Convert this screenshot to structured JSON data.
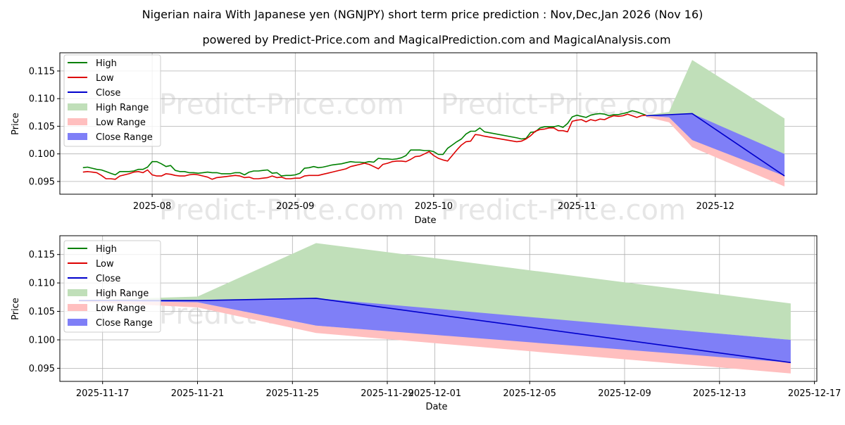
{
  "chart_data": [
    {
      "type": "line",
      "title": "Nigerian naira With Japanese yen (NGNJPY) short term price prediction : Nov,Dec,Jan 2026 (Nov 16)",
      "subtitle": "powered by Predict-Price.com and MagicalPrediction.com and MagicalAnalysis.com",
      "watermark": "Predict-Price.com",
      "xlabel": "Date",
      "ylabel": "Price",
      "xlim": [
        "2025-07-12",
        "2025-12-23"
      ],
      "ylim": [
        0.0927,
        0.1183
      ],
      "yticks": [
        0.095,
        0.1,
        0.105,
        0.11,
        0.115
      ],
      "ytick_labels": [
        "0.095",
        "0.100",
        "0.105",
        "0.110",
        "0.115"
      ],
      "xticks": [
        "2025-08-01",
        "2025-09-01",
        "2025-10-01",
        "2025-11-01",
        "2025-12-01"
      ],
      "xtick_labels": [
        "2025-08",
        "2025-09",
        "2025-10",
        "2025-11",
        "2025-12"
      ],
      "legend": {
        "position": "top-left",
        "entries": [
          {
            "label": "High",
            "kind": "line",
            "color": "#008000"
          },
          {
            "label": "Low",
            "kind": "line",
            "color": "#dd0000"
          },
          {
            "label": "Close",
            "kind": "line",
            "color": "#0000cc"
          },
          {
            "label": "High Range",
            "kind": "patch",
            "color": "#c0dfb9"
          },
          {
            "label": "Low Range",
            "kind": "patch",
            "color": "#ffbfbf"
          },
          {
            "label": "Close Range",
            "kind": "patch",
            "color": "#7f7ff7"
          }
        ]
      },
      "series": [
        {
          "name": "High",
          "color": "#008000",
          "x": [
            "2025-07-17",
            "2025-07-18",
            "2025-07-19",
            "2025-07-20",
            "2025-07-21",
            "2025-07-22",
            "2025-07-23",
            "2025-07-24",
            "2025-07-25",
            "2025-07-26",
            "2025-07-27",
            "2025-07-28",
            "2025-07-29",
            "2025-07-30",
            "2025-07-31",
            "2025-08-01",
            "2025-08-02",
            "2025-08-03",
            "2025-08-04",
            "2025-08-05",
            "2025-08-06",
            "2025-08-07",
            "2025-08-08",
            "2025-08-09",
            "2025-08-10",
            "2025-08-11",
            "2025-08-12",
            "2025-08-13",
            "2025-08-14",
            "2025-08-15",
            "2025-08-16",
            "2025-08-17",
            "2025-08-18",
            "2025-08-19",
            "2025-08-20",
            "2025-08-21",
            "2025-08-22",
            "2025-08-23",
            "2025-08-24",
            "2025-08-25",
            "2025-08-26",
            "2025-08-27",
            "2025-08-28",
            "2025-08-29",
            "2025-08-30",
            "2025-08-31",
            "2025-09-01",
            "2025-09-02",
            "2025-09-03",
            "2025-09-04",
            "2025-09-05",
            "2025-09-06",
            "2025-09-07",
            "2025-09-08",
            "2025-09-09",
            "2025-09-10",
            "2025-09-11",
            "2025-09-12",
            "2025-09-13",
            "2025-09-14",
            "2025-09-15",
            "2025-09-16",
            "2025-09-17",
            "2025-09-18",
            "2025-09-19",
            "2025-09-20",
            "2025-09-21",
            "2025-09-22",
            "2025-09-23",
            "2025-09-24",
            "2025-09-25",
            "2025-09-26",
            "2025-09-27",
            "2025-09-28",
            "2025-09-29",
            "2025-09-30",
            "2025-10-01",
            "2025-10-02",
            "2025-10-03",
            "2025-10-04",
            "2025-10-05",
            "2025-10-06",
            "2025-10-07",
            "2025-10-08",
            "2025-10-09",
            "2025-10-10",
            "2025-10-11",
            "2025-10-12",
            "2025-10-19",
            "2025-10-20",
            "2025-10-21",
            "2025-10-22",
            "2025-10-23",
            "2025-10-24",
            "2025-10-25",
            "2025-10-26",
            "2025-10-27",
            "2025-10-28",
            "2025-10-29",
            "2025-10-30",
            "2025-10-31",
            "2025-11-01",
            "2025-11-02",
            "2025-11-03",
            "2025-11-04",
            "2025-11-05",
            "2025-11-06",
            "2025-11-07",
            "2025-11-08",
            "2025-11-09",
            "2025-11-10",
            "2025-11-11",
            "2025-11-12",
            "2025-11-13",
            "2025-11-14",
            "2025-11-15",
            "2025-11-16"
          ],
          "values": [
            0.0975,
            0.0976,
            0.0974,
            0.0972,
            0.0971,
            0.0968,
            0.0965,
            0.0962,
            0.0968,
            0.0968,
            0.0968,
            0.0969,
            0.0972,
            0.0972,
            0.0976,
            0.0986,
            0.0986,
            0.0982,
            0.0977,
            0.0979,
            0.097,
            0.0968,
            0.0968,
            0.0966,
            0.0966,
            0.0965,
            0.0966,
            0.0967,
            0.0966,
            0.0966,
            0.0964,
            0.0964,
            0.0964,
            0.0966,
            0.0966,
            0.0962,
            0.0967,
            0.0969,
            0.0969,
            0.097,
            0.0971,
            0.0965,
            0.0966,
            0.096,
            0.0961,
            0.0961,
            0.0962,
            0.0965,
            0.0974,
            0.0975,
            0.0977,
            0.0975,
            0.0976,
            0.0978,
            0.098,
            0.0981,
            0.0982,
            0.0984,
            0.0986,
            0.0985,
            0.0985,
            0.0984,
            0.0986,
            0.0985,
            0.0992,
            0.0991,
            0.0991,
            0.099,
            0.0991,
            0.0993,
            0.0997,
            0.1007,
            0.1007,
            0.1007,
            0.1006,
            0.1006,
            0.1004,
            0.0999,
            0.0999,
            0.101,
            0.1016,
            0.1022,
            0.1027,
            0.1036,
            0.1041,
            0.1041,
            0.1047,
            0.104,
            0.1029,
            0.1027,
            0.1028,
            0.1039,
            0.104,
            0.1047,
            0.1049,
            0.1049,
            0.1049,
            0.1051,
            0.1048,
            0.1055,
            0.1067,
            0.107,
            0.1068,
            0.1066,
            0.107,
            0.1072,
            0.1073,
            0.1072,
            0.1069,
            0.1071,
            0.1071,
            0.1073,
            0.1075,
            0.1078,
            0.1076,
            0.1073,
            0.107
          ]
        },
        {
          "name": "Low",
          "color": "#dd0000",
          "x": [
            "2025-07-17",
            "2025-07-18",
            "2025-07-19",
            "2025-07-20",
            "2025-07-21",
            "2025-07-22",
            "2025-07-23",
            "2025-07-24",
            "2025-07-25",
            "2025-07-26",
            "2025-07-27",
            "2025-07-28",
            "2025-07-29",
            "2025-07-30",
            "2025-07-31",
            "2025-08-01",
            "2025-08-02",
            "2025-08-03",
            "2025-08-04",
            "2025-08-05",
            "2025-08-06",
            "2025-08-07",
            "2025-08-08",
            "2025-08-09",
            "2025-08-10",
            "2025-08-11",
            "2025-08-12",
            "2025-08-13",
            "2025-08-14",
            "2025-08-15",
            "2025-08-16",
            "2025-08-17",
            "2025-08-18",
            "2025-08-19",
            "2025-08-20",
            "2025-08-21",
            "2025-08-22",
            "2025-08-23",
            "2025-08-24",
            "2025-08-25",
            "2025-08-26",
            "2025-08-27",
            "2025-08-28",
            "2025-08-29",
            "2025-08-30",
            "2025-08-31",
            "2025-09-01",
            "2025-09-02",
            "2025-09-03",
            "2025-09-04",
            "2025-09-05",
            "2025-09-06",
            "2025-09-07",
            "2025-09-08",
            "2025-09-09",
            "2025-09-10",
            "2025-09-11",
            "2025-09-12",
            "2025-09-13",
            "2025-09-14",
            "2025-09-15",
            "2025-09-16",
            "2025-09-17",
            "2025-09-18",
            "2025-09-19",
            "2025-09-20",
            "2025-09-21",
            "2025-09-22",
            "2025-09-23",
            "2025-09-24",
            "2025-09-25",
            "2025-09-26",
            "2025-09-27",
            "2025-09-28",
            "2025-09-29",
            "2025-09-30",
            "2025-10-01",
            "2025-10-02",
            "2025-10-03",
            "2025-10-04",
            "2025-10-05",
            "2025-10-06",
            "2025-10-07",
            "2025-10-08",
            "2025-10-09",
            "2025-10-10",
            "2025-10-11",
            "2025-10-12",
            "2025-10-19",
            "2025-10-20",
            "2025-10-21",
            "2025-10-22",
            "2025-10-23",
            "2025-10-24",
            "2025-10-25",
            "2025-10-26",
            "2025-10-27",
            "2025-10-28",
            "2025-10-29",
            "2025-10-30",
            "2025-10-31",
            "2025-11-01",
            "2025-11-02",
            "2025-11-03",
            "2025-11-04",
            "2025-11-05",
            "2025-11-06",
            "2025-11-07",
            "2025-11-08",
            "2025-11-09",
            "2025-11-10",
            "2025-11-11",
            "2025-11-12",
            "2025-11-13",
            "2025-11-14",
            "2025-11-15",
            "2025-11-16"
          ],
          "values": [
            0.0967,
            0.0968,
            0.0967,
            0.0966,
            0.0961,
            0.0955,
            0.0955,
            0.0954,
            0.096,
            0.0962,
            0.0964,
            0.0967,
            0.0968,
            0.0966,
            0.0971,
            0.0962,
            0.096,
            0.096,
            0.0964,
            0.0963,
            0.0961,
            0.096,
            0.096,
            0.0962,
            0.0963,
            0.0962,
            0.096,
            0.0958,
            0.0954,
            0.0957,
            0.0958,
            0.0959,
            0.096,
            0.0961,
            0.096,
            0.0957,
            0.0958,
            0.0955,
            0.0955,
            0.0956,
            0.0957,
            0.096,
            0.0957,
            0.0958,
            0.0955,
            0.0955,
            0.0956,
            0.0956,
            0.096,
            0.0961,
            0.0961,
            0.0961,
            0.0963,
            0.0965,
            0.0967,
            0.0969,
            0.0971,
            0.0973,
            0.0977,
            0.0979,
            0.0981,
            0.0983,
            0.0981,
            0.0977,
            0.0973,
            0.0981,
            0.0983,
            0.0986,
            0.0987,
            0.0987,
            0.0986,
            0.099,
            0.0995,
            0.0996,
            0.1,
            0.1004,
            0.0997,
            0.0992,
            0.0989,
            0.0987,
            0.0997,
            0.1007,
            0.1016,
            0.1022,
            0.1023,
            0.1035,
            0.1034,
            0.1032,
            0.1022,
            0.1023,
            0.1027,
            0.1033,
            0.1041,
            0.1044,
            0.1045,
            0.1047,
            0.1047,
            0.1042,
            0.1042,
            0.104,
            0.1059,
            0.1061,
            0.1062,
            0.1058,
            0.1062,
            0.106,
            0.1063,
            0.1062,
            0.1066,
            0.1069,
            0.1068,
            0.1069,
            0.1072,
            0.1069,
            0.1066,
            0.1069,
            0.107
          ]
        },
        {
          "name": "Close",
          "color": "#0000cc",
          "x": [
            "2025-11-16",
            "2025-11-26",
            "2025-12-16"
          ],
          "values": [
            0.1069,
            0.1073,
            0.096
          ]
        }
      ],
      "bands": [
        {
          "name": "High Range",
          "color": "#c0dfb9",
          "x": [
            "2025-11-16",
            "2025-11-21",
            "2025-11-26",
            "2025-12-16"
          ],
          "upper": [
            0.107,
            0.1076,
            0.117,
            0.1064
          ],
          "lower": [
            0.1069,
            0.1069,
            0.1072,
            0.1
          ]
        },
        {
          "name": "Low Range",
          "color": "#ffbfbf",
          "x": [
            "2025-11-16",
            "2025-11-21",
            "2025-11-26",
            "2025-12-16"
          ],
          "upper": [
            0.1069,
            0.1066,
            0.1025,
            0.0962
          ],
          "lower": [
            0.1067,
            0.1057,
            0.1012,
            0.0941
          ]
        },
        {
          "name": "Close Range",
          "color": "#7f7ff7",
          "x": [
            "2025-11-16",
            "2025-11-21",
            "2025-11-26",
            "2025-12-16"
          ],
          "upper": [
            0.107,
            0.107,
            0.1073,
            0.1
          ],
          "lower": [
            0.1069,
            0.1066,
            0.1025,
            0.096
          ]
        }
      ]
    },
    {
      "type": "line",
      "xlabel": "Date",
      "ylabel": "Price",
      "watermark": "Predict-Price.com",
      "xlim": [
        "2025-11-15.2",
        "2025-12-17.1"
      ],
      "ylim": [
        0.0927,
        0.1183
      ],
      "yticks": [
        0.095,
        0.1,
        0.105,
        0.11,
        0.115
      ],
      "ytick_labels": [
        "0.095",
        "0.100",
        "0.105",
        "0.110",
        "0.115"
      ],
      "xticks": [
        "2025-11-17",
        "2025-11-21",
        "2025-11-25",
        "2025-11-29",
        "2025-12-01",
        "2025-12-05",
        "2025-12-09",
        "2025-12-13",
        "2025-12-17"
      ],
      "xtick_labels": [
        "2025-11-17",
        "2025-11-21",
        "2025-11-25",
        "2025-11-29",
        "2025-12-01",
        "2025-12-05",
        "2025-12-09",
        "2025-12-13",
        "2025-12-17"
      ],
      "legend": {
        "position": "top-left",
        "entries": [
          {
            "label": "High",
            "kind": "line",
            "color": "#008000"
          },
          {
            "label": "Low",
            "kind": "line",
            "color": "#dd0000"
          },
          {
            "label": "Close",
            "kind": "line",
            "color": "#0000cc"
          },
          {
            "label": "High Range",
            "kind": "patch",
            "color": "#c0dfb9"
          },
          {
            "label": "Low Range",
            "kind": "patch",
            "color": "#ffbfbf"
          },
          {
            "label": "Close Range",
            "kind": "patch",
            "color": "#7f7ff7"
          }
        ]
      },
      "series": [
        {
          "name": "Close",
          "color": "#0000cc",
          "x": [
            "2025-11-16",
            "2025-11-21",
            "2025-11-26",
            "2025-12-16"
          ],
          "values": [
            0.1069,
            0.1069,
            0.1073,
            0.096
          ]
        }
      ],
      "bands": [
        {
          "name": "High Range",
          "color": "#c0dfb9",
          "x": [
            "2025-11-16",
            "2025-11-21",
            "2025-11-26",
            "2025-12-16"
          ],
          "upper": [
            0.107,
            0.1076,
            0.117,
            0.1064
          ],
          "lower": [
            0.1069,
            0.1069,
            0.1072,
            0.1
          ]
        },
        {
          "name": "Low Range",
          "color": "#ffbfbf",
          "x": [
            "2025-11-16",
            "2025-11-21",
            "2025-11-26",
            "2025-12-16"
          ],
          "upper": [
            0.1069,
            0.1066,
            0.1025,
            0.0962
          ],
          "lower": [
            0.1067,
            0.1057,
            0.1012,
            0.0941
          ]
        },
        {
          "name": "Close Range",
          "color": "#7f7ff7",
          "x": [
            "2025-11-16",
            "2025-11-21",
            "2025-11-26",
            "2025-12-16"
          ],
          "upper": [
            0.107,
            0.107,
            0.1073,
            0.1
          ],
          "lower": [
            0.1069,
            0.1066,
            0.1025,
            0.096
          ]
        }
      ]
    }
  ]
}
